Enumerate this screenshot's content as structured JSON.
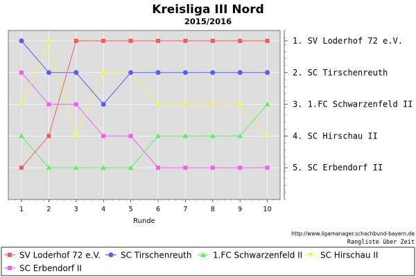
{
  "chart_data": {
    "type": "line",
    "title": "Kreisliga III Nord",
    "subtitle": "2015/2016",
    "xlabel": "Runde",
    "ylabel": "",
    "categories": [
      "1",
      "2",
      "3",
      "4",
      "5",
      "6",
      "7",
      "8",
      "9",
      "10"
    ],
    "y_range": [
      1,
      5
    ],
    "y_inverted": true,
    "grid": true,
    "legend_placement": "bottom",
    "rank_labels": [
      "1. SV Loderhof 72 e.V.",
      "2. SC Tirschenreuth",
      "3. 1.FC Schwarzenfeld II",
      "4. SC Hirschau II",
      "5. SC Erbendorf II"
    ],
    "series": [
      {
        "name": "SV Loderhof 72 e.V.",
        "color": "#f45a5a",
        "marker": "square",
        "values": [
          5,
          4,
          1,
          1,
          1,
          1,
          1,
          1,
          1,
          1
        ]
      },
      {
        "name": "SC Tirschenreuth",
        "color": "#5a5af4",
        "marker": "circle",
        "values": [
          1,
          2,
          2,
          3,
          2,
          2,
          2,
          2,
          2,
          2
        ]
      },
      {
        "name": "1.FC Schwarzenfeld II",
        "color": "#5af45a",
        "marker": "triangle",
        "values": [
          4,
          5,
          5,
          5,
          5,
          4,
          4,
          4,
          4,
          3
        ]
      },
      {
        "name": "SC Hirschau II",
        "color": "#f4f45a",
        "marker": "triangle-down",
        "values": [
          3,
          1,
          4,
          2,
          2,
          3,
          3,
          3,
          3,
          4
        ]
      },
      {
        "name": "SC Erbendorf II",
        "color": "#f45af4",
        "marker": "square",
        "values": [
          2,
          3,
          3,
          4,
          4,
          5,
          5,
          5,
          5,
          5
        ]
      }
    ]
  },
  "source_url": "http://www.ligamanager.schachbund-bayern.de",
  "footer_caption": "Rangliste über Zeit"
}
